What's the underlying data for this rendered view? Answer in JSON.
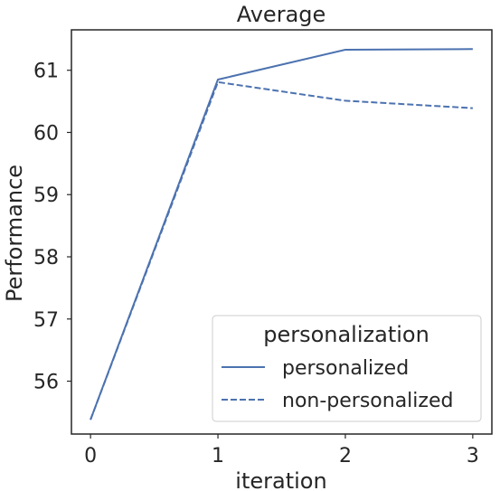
{
  "chart_data": {
    "type": "line",
    "title": "Average",
    "xlabel": "iteration",
    "ylabel": "Performance",
    "x": [
      0,
      1,
      2,
      3
    ],
    "xticks": [
      "0",
      "1",
      "2",
      "3"
    ],
    "yticks": [
      "56",
      "57",
      "58",
      "59",
      "60",
      "61"
    ],
    "xlim": [
      -0.15,
      3.15
    ],
    "ylim": [
      55.15,
      61.65
    ],
    "grid": false,
    "legend": {
      "title": "personalization",
      "position": "lower-right"
    },
    "series": [
      {
        "name": "personalized",
        "values": [
          55.38,
          60.85,
          61.33,
          61.34
        ],
        "style": "solid",
        "color": "#4c72b0"
      },
      {
        "name": "non-personalized",
        "values": [
          55.38,
          60.81,
          60.51,
          60.39
        ],
        "style": "dashed",
        "color": "#4c72b0"
      }
    ]
  }
}
